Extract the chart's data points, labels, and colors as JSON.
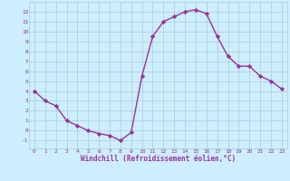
{
  "x": [
    0,
    1,
    2,
    3,
    4,
    5,
    6,
    7,
    8,
    9,
    10,
    11,
    12,
    13,
    14,
    15,
    16,
    17,
    18,
    19,
    20,
    21,
    22,
    23
  ],
  "y": [
    4,
    3,
    2.5,
    1,
    0.5,
    0,
    -0.3,
    -0.5,
    -1,
    -0.2,
    5.5,
    9.5,
    11,
    11.5,
    12,
    12.2,
    11.8,
    9.5,
    7.5,
    6.5,
    6.5,
    5.5,
    5,
    4.2
  ],
  "color": "#993399",
  "bg_color": "#cceeff",
  "grid_color": "#aacccc",
  "xlabel": "Windchill (Refroidissement éolien,°C)",
  "xlim": [
    -0.5,
    23.5
  ],
  "ylim": [
    -1.8,
    13.0
  ],
  "yticks": [
    -1,
    0,
    1,
    2,
    3,
    4,
    5,
    6,
    7,
    8,
    9,
    10,
    11,
    12
  ],
  "xticks": [
    0,
    1,
    2,
    3,
    4,
    5,
    6,
    7,
    8,
    9,
    10,
    11,
    12,
    13,
    14,
    15,
    16,
    17,
    18,
    19,
    20,
    21,
    22,
    23
  ],
  "marker": "D",
  "marker_size": 2.2,
  "line_width": 1.0
}
